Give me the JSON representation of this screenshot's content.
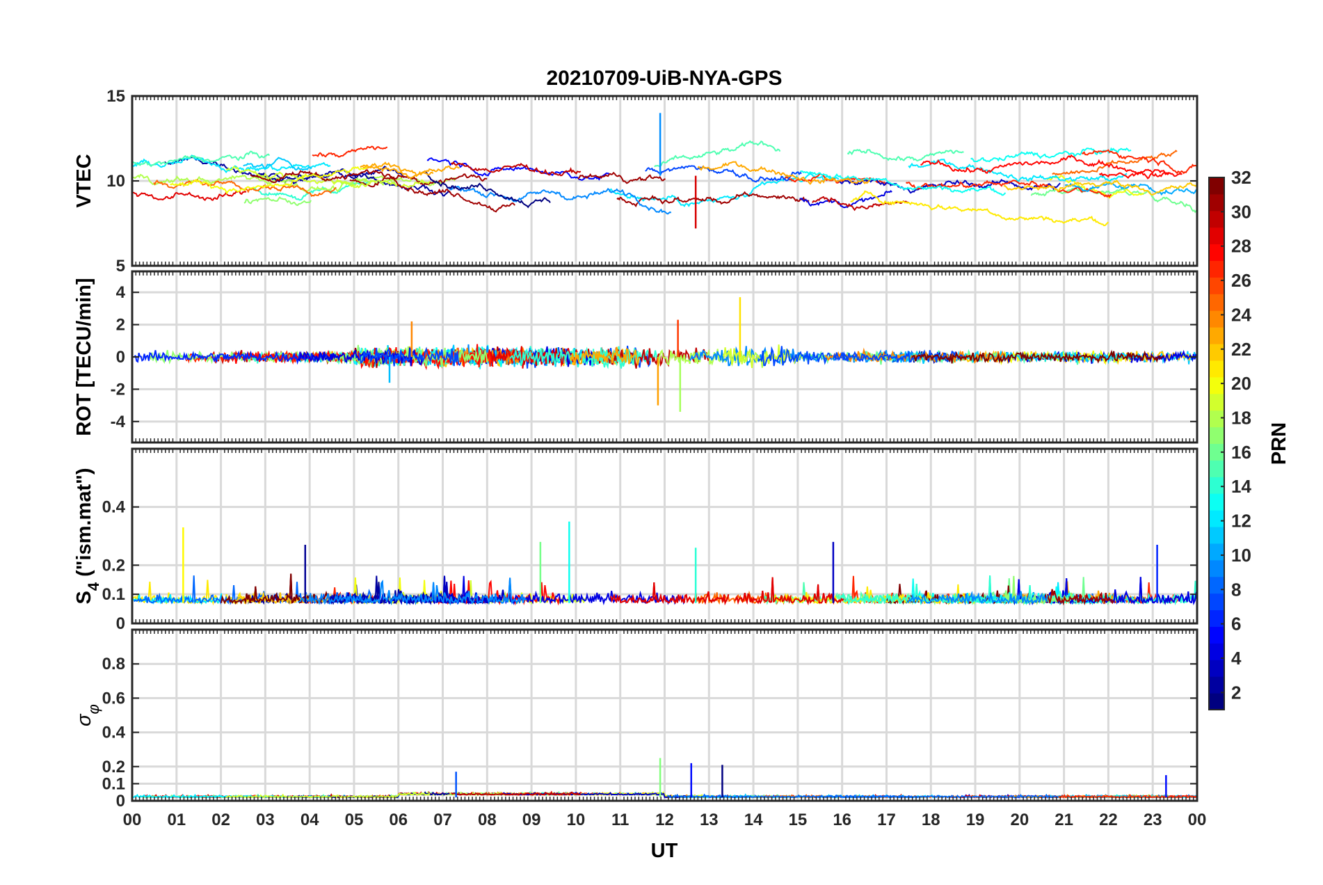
{
  "title": "20210709-UiB-NYA-GPS",
  "chart_data": {
    "type": "line",
    "xlabel": "UT",
    "x_ticks": [
      "00",
      "01",
      "02",
      "03",
      "04",
      "05",
      "06",
      "07",
      "08",
      "09",
      "10",
      "11",
      "12",
      "13",
      "14",
      "15",
      "16",
      "17",
      "18",
      "19",
      "20",
      "21",
      "22",
      "23",
      "00"
    ],
    "xlim": [
      0,
      24
    ],
    "grid": true,
    "colorbar": {
      "label": "PRN",
      "range": [
        1,
        32
      ],
      "ticks": [
        "2",
        "4",
        "6",
        "8",
        "10",
        "12",
        "14",
        "16",
        "18",
        "20",
        "22",
        "24",
        "26",
        "28",
        "30",
        "32"
      ],
      "colormap": "jet"
    },
    "panels": [
      {
        "id": "vtec",
        "ylabel": "VTEC",
        "ylim": [
          5,
          15
        ],
        "y_ticks": [
          "5",
          "10",
          "15"
        ],
        "baseline": 10.3,
        "spread": 1.6,
        "spikes": [
          {
            "x": 11.9,
            "y": 14.0
          },
          {
            "x": 12.7,
            "y": 7.2
          }
        ]
      },
      {
        "id": "rot",
        "ylabel": "ROT [TECU/min]",
        "ylim": [
          -5.3,
          5.3
        ],
        "y_ticks": [
          "-4",
          "-2",
          "0",
          "2",
          "4"
        ],
        "baseline": 0,
        "spread": 0.3,
        "spikes": [
          {
            "x": 11.85,
            "y": -3.0
          },
          {
            "x": 12.35,
            "y": -3.4
          },
          {
            "x": 12.3,
            "y": 2.3
          },
          {
            "x": 13.7,
            "y": 3.7
          },
          {
            "x": 6.3,
            "y": 2.2
          },
          {
            "x": 5.8,
            "y": -1.6
          }
        ]
      },
      {
        "id": "s4",
        "ylabel": "S4 (\"ism.mat\")",
        "ylabel_main": "S",
        "ylabel_sub": "4",
        "ylabel_rest": " (\"ism.mat\")",
        "ylim": [
          0,
          0.6
        ],
        "y_ticks": [
          "0",
          "0.1",
          "0.2",
          "0.4"
        ],
        "baseline": 0.07,
        "spread": 0.03,
        "spikes": [
          {
            "x": 1.15,
            "y": 0.33
          },
          {
            "x": 3.9,
            "y": 0.27
          },
          {
            "x": 9.85,
            "y": 0.35
          },
          {
            "x": 9.2,
            "y": 0.28
          },
          {
            "x": 12.7,
            "y": 0.26
          },
          {
            "x": 15.8,
            "y": 0.28
          },
          {
            "x": 23.1,
            "y": 0.27
          }
        ]
      },
      {
        "id": "sigphi",
        "ylabel": "σφ",
        "ylabel_main": "σ",
        "ylabel_sub": "φ",
        "ylim": [
          0,
          1
        ],
        "y_ticks": [
          "0",
          "0.1",
          "0.2",
          "0.4",
          "0.6",
          "0.8"
        ],
        "baseline": 0.02,
        "spread": 0.01,
        "spikes": [
          {
            "x": 11.9,
            "y": 0.25
          },
          {
            "x": 12.6,
            "y": 0.22
          },
          {
            "x": 13.3,
            "y": 0.21
          },
          {
            "x": 23.3,
            "y": 0.15
          },
          {
            "x": 7.3,
            "y": 0.17
          }
        ]
      }
    ]
  }
}
